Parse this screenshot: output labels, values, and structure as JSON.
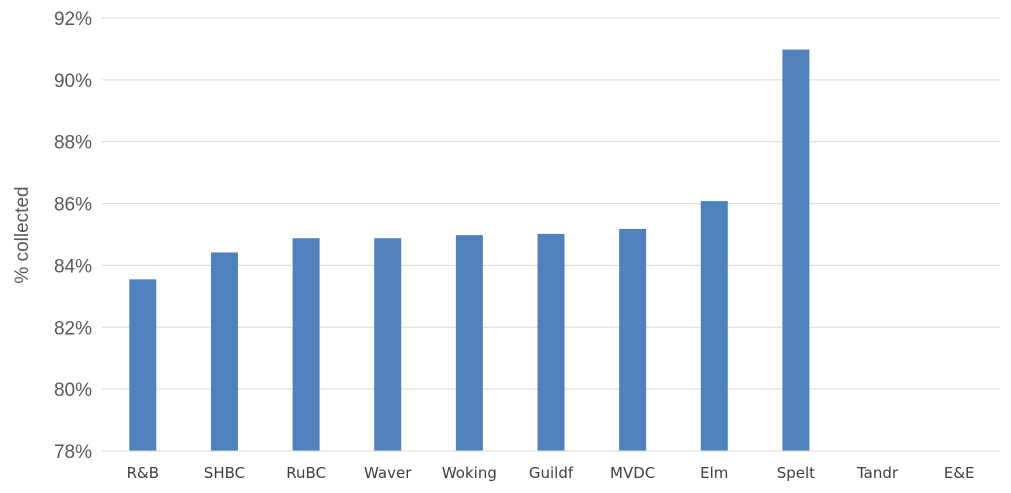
{
  "chart_data": {
    "type": "bar",
    "categories": [
      "R&B",
      "SHBC",
      "RuBC",
      "Waver",
      "Woking",
      "Guildf",
      "MVDC",
      "Elm",
      "Spelt",
      "Tandr",
      "E&E"
    ],
    "values": [
      83.55,
      84.42,
      84.88,
      84.88,
      84.98,
      85.02,
      85.18,
      86.08,
      90.98,
      null,
      null
    ],
    "yticks": [
      "78%",
      "80%",
      "82%",
      "84%",
      "86%",
      "88%",
      "90%",
      "92%"
    ],
    "ylim": [
      78,
      92
    ],
    "ylabel": "% collected",
    "grid": true,
    "colors": {
      "bar": "#4f81bd",
      "grid": "#d9d9d9"
    }
  }
}
